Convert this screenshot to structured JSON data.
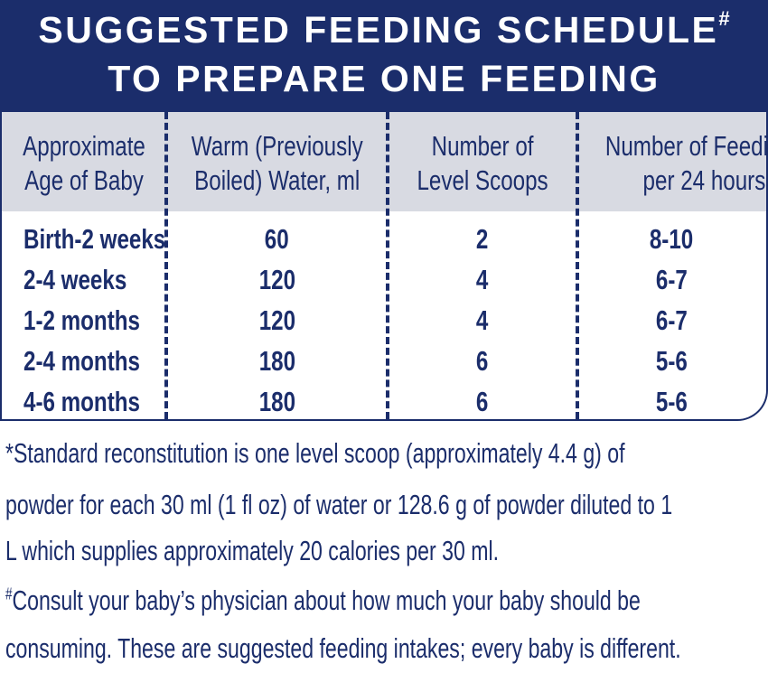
{
  "title": {
    "line1": "SUGGESTED FEEDING SCHEDULE",
    "line1_mark": "#",
    "line2": "TO PREPARE ONE FEEDING"
  },
  "table": {
    "headers": [
      [
        "Approximate",
        "Age of Baby"
      ],
      [
        "Warm (Previously",
        "Boiled) Water, ml"
      ],
      [
        "Number of",
        "Level Scoops"
      ],
      [
        "Number of Feedings",
        "per 24 hours"
      ]
    ],
    "rows": [
      [
        "Birth-2 weeks",
        "60",
        "2",
        "8-10"
      ],
      [
        "2-4 weeks",
        "120",
        "4",
        "6-7"
      ],
      [
        "1-2 months",
        "120",
        "4",
        "6-7"
      ],
      [
        "2-4 months",
        "180",
        "6",
        "5-6"
      ],
      [
        "4-6 months",
        "180",
        "6",
        "5-6"
      ]
    ]
  },
  "footnotes": {
    "standard_lines": [
      "*Standard reconstitution is one level scoop (approximately 4.4 g) of",
      "powder for each 30 ml (1 fl oz) of water or 128.6 g of powder diluted to 1",
      "L which supplies approximately 20 calories per 30 ml."
    ],
    "hash_mark": "#",
    "consult_lines": [
      "Consult your baby’s physician about how much your baby should be",
      "consuming. These are suggested feeding intakes; every baby is different."
    ]
  },
  "colors": {
    "navy": "#1b2d6b",
    "header_gray": "#d8dae2"
  }
}
